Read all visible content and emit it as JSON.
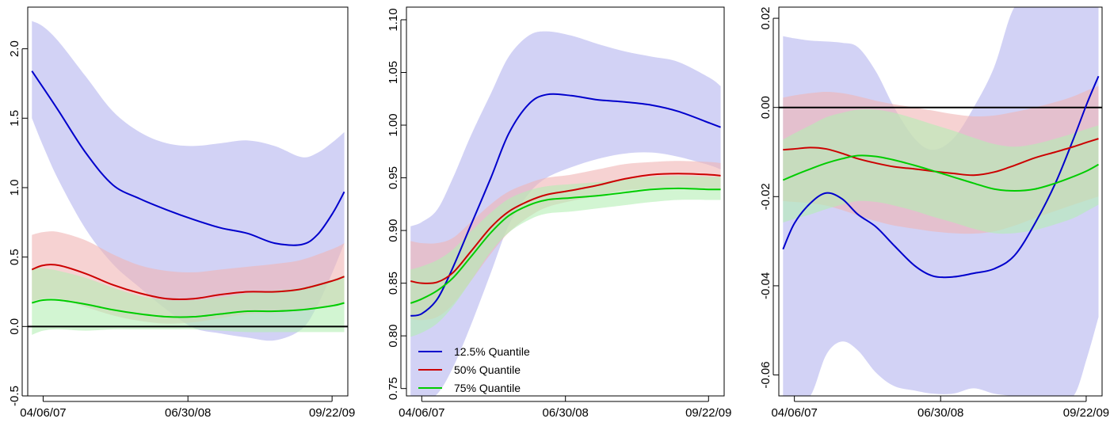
{
  "chart_data": [
    {
      "type": "line",
      "x_tick_labels": [
        "04/06/07",
        "06/30/08",
        "09/22/09"
      ],
      "x_ticks": [
        "04/06/07",
        "06/30/08",
        "09/22/09"
      ],
      "xlim": [
        "2007-02-17",
        "2009-11-10"
      ],
      "ylim": [
        -0.5,
        2.3
      ],
      "y_ticks": [
        -0.5,
        0.0,
        0.5,
        1.0,
        1.5,
        2.0
      ],
      "y_tick_labels": [
        "-0.5",
        "0.0",
        "0.5",
        "1.0",
        "1.5",
        "2.0"
      ],
      "hline": 0.0,
      "grid": false,
      "series": [
        {
          "color": "#0000cc",
          "band_color": "#b4b4ee",
          "x": [
            "2007-03-02",
            "2007-04-06",
            "2007-05-25",
            "2007-08-17",
            "2007-11-09",
            "2008-02-01",
            "2008-04-25",
            "2008-07-18",
            "2008-10-10",
            "2009-01-02",
            "2009-03-27",
            "2009-06-19",
            "2009-08-07",
            "2009-09-25",
            "2009-10-30"
          ],
          "y": [
            1.84,
            1.72,
            1.55,
            1.25,
            1.02,
            0.92,
            0.84,
            0.77,
            0.71,
            0.67,
            0.6,
            0.59,
            0.66,
            0.82,
            0.97
          ],
          "lower": [
            1.5,
            1.3,
            1.05,
            0.7,
            0.45,
            0.28,
            0.12,
            -0.01,
            -0.05,
            -0.08,
            -0.1,
            -0.02,
            0.15,
            0.4,
            0.6
          ],
          "upper": [
            2.2,
            2.16,
            2.05,
            1.8,
            1.55,
            1.4,
            1.32,
            1.3,
            1.32,
            1.34,
            1.3,
            1.22,
            1.25,
            1.33,
            1.4
          ]
        },
        {
          "color": "#cc0000",
          "band_color": "#f0b4b4",
          "x": [
            "2007-03-02",
            "2007-04-06",
            "2007-05-25",
            "2007-08-17",
            "2007-11-09",
            "2008-02-01",
            "2008-04-25",
            "2008-07-18",
            "2008-10-10",
            "2009-01-02",
            "2009-03-27",
            "2009-06-19",
            "2009-09-25",
            "2009-10-30"
          ],
          "y": [
            0.41,
            0.44,
            0.44,
            0.38,
            0.3,
            0.24,
            0.2,
            0.2,
            0.23,
            0.25,
            0.25,
            0.27,
            0.33,
            0.36
          ],
          "lower": [
            0.18,
            0.2,
            0.2,
            0.14,
            0.08,
            0.04,
            0.02,
            0.03,
            0.06,
            0.09,
            0.1,
            0.12,
            0.15,
            0.16
          ],
          "upper": [
            0.66,
            0.68,
            0.68,
            0.62,
            0.52,
            0.44,
            0.4,
            0.39,
            0.41,
            0.43,
            0.45,
            0.48,
            0.56,
            0.6
          ]
        },
        {
          "color": "#00cc00",
          "band_color": "#b4eeb4",
          "x": [
            "2007-03-02",
            "2007-04-06",
            "2007-05-25",
            "2007-08-17",
            "2007-11-09",
            "2008-02-01",
            "2008-04-25",
            "2008-07-18",
            "2008-10-10",
            "2009-01-02",
            "2009-03-27",
            "2009-06-19",
            "2009-09-25",
            "2009-10-30"
          ],
          "y": [
            0.17,
            0.19,
            0.19,
            0.16,
            0.12,
            0.09,
            0.07,
            0.07,
            0.09,
            0.11,
            0.11,
            0.12,
            0.15,
            0.17
          ],
          "lower": [
            -0.06,
            -0.03,
            -0.02,
            -0.03,
            -0.02,
            -0.02,
            -0.02,
            -0.02,
            -0.03,
            -0.04,
            -0.04,
            -0.04,
            -0.04,
            -0.04
          ],
          "upper": [
            0.42,
            0.42,
            0.4,
            0.35,
            0.28,
            0.22,
            0.19,
            0.19,
            0.21,
            0.24,
            0.26,
            0.28,
            0.34,
            0.37
          ]
        }
      ]
    },
    {
      "type": "line",
      "x_tick_labels": [
        "04/06/07",
        "06/30/08",
        "09/22/09"
      ],
      "x_ticks": [
        "04/06/07",
        "06/30/08",
        "09/22/09"
      ],
      "xlim": [
        "2007-02-17",
        "2009-11-10"
      ],
      "ylim": [
        0.743,
        1.112
      ],
      "y_ticks": [
        0.75,
        0.8,
        0.85,
        0.9,
        0.95,
        1.0,
        1.05,
        1.1
      ],
      "y_tick_labels": [
        "0.75",
        "0.80",
        "0.85",
        "0.90",
        "0.95",
        "1.00",
        "1.05",
        "1.10"
      ],
      "grid": false,
      "legend": {
        "position": "bottom-left",
        "entries": [
          {
            "label": "12.5% Quantile",
            "color": "#0000cc"
          },
          {
            "label": "50% Quantile",
            "color": "#cc0000"
          },
          {
            "label": "75% Quantile",
            "color": "#00cc00"
          }
        ]
      },
      "series": [
        {
          "color": "#0000cc",
          "band_color": "#b4b4ee",
          "x": [
            "2007-03-02",
            "2007-04-06",
            "2007-05-25",
            "2007-07-13",
            "2007-09-07",
            "2007-11-09",
            "2008-01-04",
            "2008-03-07",
            "2008-05-02",
            "2008-07-18",
            "2008-10-10",
            "2009-01-02",
            "2009-03-27",
            "2009-06-19",
            "2009-09-25",
            "2009-10-30"
          ],
          "y": [
            0.819,
            0.821,
            0.835,
            0.865,
            0.905,
            0.95,
            0.992,
            1.02,
            1.029,
            1.028,
            1.024,
            1.022,
            1.019,
            1.013,
            1.002,
            0.998
          ],
          "lower": [
            0.736,
            0.738,
            0.745,
            0.77,
            0.81,
            0.86,
            0.905,
            0.935,
            0.95,
            0.96,
            0.968,
            0.973,
            0.974,
            0.97,
            0.962,
            0.958
          ],
          "upper": [
            0.904,
            0.908,
            0.92,
            0.95,
            0.99,
            1.03,
            1.065,
            1.085,
            1.089,
            1.085,
            1.077,
            1.07,
            1.065,
            1.06,
            1.045,
            1.037
          ]
        },
        {
          "color": "#cc0000",
          "band_color": "#f0b4b4",
          "x": [
            "2007-03-02",
            "2007-04-06",
            "2007-05-25",
            "2007-07-13",
            "2007-09-07",
            "2007-11-09",
            "2008-01-04",
            "2008-03-07",
            "2008-05-02",
            "2008-07-18",
            "2008-10-10",
            "2009-01-02",
            "2009-03-27",
            "2009-06-19",
            "2009-09-25",
            "2009-10-30"
          ],
          "y": [
            0.852,
            0.85,
            0.851,
            0.86,
            0.88,
            0.903,
            0.918,
            0.928,
            0.934,
            0.938,
            0.943,
            0.949,
            0.953,
            0.954,
            0.953,
            0.952
          ],
          "lower": [
            0.816,
            0.815,
            0.818,
            0.83,
            0.852,
            0.878,
            0.898,
            0.913,
            0.922,
            0.928,
            0.933,
            0.938,
            0.94,
            0.941,
            0.94,
            0.939
          ],
          "upper": [
            0.89,
            0.888,
            0.888,
            0.893,
            0.908,
            0.925,
            0.937,
            0.945,
            0.95,
            0.953,
            0.958,
            0.963,
            0.965,
            0.966,
            0.965,
            0.964
          ]
        },
        {
          "color": "#00cc00",
          "band_color": "#b4eeb4",
          "x": [
            "2007-03-02",
            "2007-04-06",
            "2007-05-25",
            "2007-07-13",
            "2007-09-07",
            "2007-11-09",
            "2008-01-04",
            "2008-03-07",
            "2008-05-02",
            "2008-07-18",
            "2008-10-10",
            "2009-01-02",
            "2009-03-27",
            "2009-06-19",
            "2009-09-25",
            "2009-10-30"
          ],
          "y": [
            0.831,
            0.835,
            0.843,
            0.855,
            0.875,
            0.898,
            0.914,
            0.924,
            0.929,
            0.931,
            0.933,
            0.936,
            0.939,
            0.94,
            0.939,
            0.939
          ],
          "lower": [
            0.799,
            0.803,
            0.812,
            0.828,
            0.852,
            0.88,
            0.898,
            0.91,
            0.916,
            0.918,
            0.921,
            0.924,
            0.927,
            0.929,
            0.929,
            0.929
          ],
          "upper": [
            0.863,
            0.866,
            0.872,
            0.882,
            0.899,
            0.917,
            0.93,
            0.938,
            0.942,
            0.944,
            0.946,
            0.949,
            0.951,
            0.952,
            0.951,
            0.951
          ]
        }
      ]
    },
    {
      "type": "line",
      "x_tick_labels": [
        "04/06/07",
        "06/30/08",
        "09/22/09"
      ],
      "x_ticks": [
        "04/06/07",
        "06/30/08",
        "09/22/09"
      ],
      "xlim": [
        "2007-02-17",
        "2009-11-10"
      ],
      "ylim": [
        -0.0647,
        0.0225
      ],
      "y_ticks": [
        -0.06,
        -0.04,
        -0.02,
        0.0,
        0.02
      ],
      "y_tick_labels": [
        "-0.06",
        "-0.04",
        "-0.02",
        "0.00",
        "0.02"
      ],
      "hline": 0.0,
      "grid": false,
      "series": [
        {
          "color": "#0000cc",
          "band_color": "#b4b4ee",
          "x": [
            "2007-03-02",
            "2007-04-06",
            "2007-05-25",
            "2007-07-13",
            "2007-08-31",
            "2007-10-19",
            "2007-12-14",
            "2008-02-08",
            "2008-04-11",
            "2008-06-06",
            "2008-08-08",
            "2008-10-10",
            "2008-12-12",
            "2009-02-13",
            "2009-04-17",
            "2009-06-19",
            "2009-08-14",
            "2009-09-25",
            "2009-10-30"
          ],
          "y": [
            -0.0318,
            -0.026,
            -0.0215,
            -0.0192,
            -0.0205,
            -0.024,
            -0.0268,
            -0.031,
            -0.0355,
            -0.0378,
            -0.038,
            -0.0372,
            -0.0362,
            -0.0332,
            -0.026,
            -0.017,
            -0.007,
            0.001,
            0.007
          ],
          "lower": [
            -0.0647,
            -0.0647,
            -0.0647,
            -0.0555,
            -0.0525,
            -0.0545,
            -0.0595,
            -0.0625,
            -0.0635,
            -0.0642,
            -0.0642,
            -0.063,
            -0.0642,
            -0.0647,
            -0.0647,
            -0.0647,
            -0.0647,
            -0.056,
            -0.047
          ],
          "upper": [
            0.016,
            0.0155,
            0.015,
            0.0148,
            0.0145,
            0.0135,
            0.008,
            0.0,
            -0.007,
            -0.0095,
            -0.007,
            0.0,
            0.009,
            0.0225,
            0.0225,
            0.0225,
            0.0225,
            0.0225,
            0.0225
          ]
        },
        {
          "color": "#cc0000",
          "band_color": "#f0b4b4",
          "x": [
            "2007-03-02",
            "2007-04-06",
            "2007-05-25",
            "2007-07-13",
            "2007-08-31",
            "2007-10-19",
            "2007-12-14",
            "2008-02-08",
            "2008-04-11",
            "2008-06-06",
            "2008-08-08",
            "2008-10-10",
            "2008-12-12",
            "2009-02-13",
            "2009-04-17",
            "2009-06-19",
            "2009-08-14",
            "2009-09-25",
            "2009-10-30"
          ],
          "y": [
            -0.0095,
            -0.0093,
            -0.009,
            -0.0093,
            -0.0103,
            -0.0115,
            -0.0125,
            -0.0133,
            -0.0138,
            -0.0143,
            -0.0148,
            -0.0152,
            -0.0145,
            -0.013,
            -0.0113,
            -0.01,
            -0.0088,
            -0.0078,
            -0.007
          ],
          "lower": [
            -0.021,
            -0.0212,
            -0.0215,
            -0.022,
            -0.023,
            -0.0242,
            -0.0255,
            -0.0265,
            -0.0272,
            -0.0278,
            -0.0282,
            -0.0283,
            -0.0278,
            -0.0265,
            -0.0248,
            -0.0232,
            -0.0218,
            -0.0208,
            -0.02
          ],
          "upper": [
            0.0022,
            0.0027,
            0.0032,
            0.0035,
            0.0032,
            0.0025,
            0.0015,
            0.0007,
            0.0,
            -0.0007,
            -0.0015,
            -0.002,
            -0.0018,
            -0.001,
            0.0,
            0.0012,
            0.0025,
            0.0038,
            0.0048
          ]
        },
        {
          "color": "#00cc00",
          "band_color": "#b4eeb4",
          "x": [
            "2007-03-02",
            "2007-04-06",
            "2007-05-25",
            "2007-07-13",
            "2007-08-31",
            "2007-10-19",
            "2007-12-14",
            "2008-02-08",
            "2008-04-11",
            "2008-06-06",
            "2008-08-08",
            "2008-10-10",
            "2008-12-12",
            "2009-02-13",
            "2009-04-17",
            "2009-06-19",
            "2009-08-14",
            "2009-09-25",
            "2009-10-30"
          ],
          "y": [
            -0.0163,
            -0.0152,
            -0.0138,
            -0.0125,
            -0.0115,
            -0.0108,
            -0.011,
            -0.0118,
            -0.013,
            -0.0142,
            -0.0156,
            -0.017,
            -0.0183,
            -0.0187,
            -0.0183,
            -0.017,
            -0.0155,
            -0.0142,
            -0.0128
          ],
          "lower": [
            -0.0258,
            -0.025,
            -0.024,
            -0.0228,
            -0.0218,
            -0.021,
            -0.0212,
            -0.022,
            -0.0232,
            -0.0245,
            -0.0258,
            -0.0272,
            -0.0282,
            -0.0282,
            -0.0275,
            -0.0262,
            -0.0248,
            -0.0232,
            -0.0218
          ],
          "upper": [
            -0.0072,
            -0.0058,
            -0.004,
            -0.0022,
            -0.0012,
            -0.0005,
            -0.0005,
            -0.0012,
            -0.0025,
            -0.0038,
            -0.0052,
            -0.0068,
            -0.0082,
            -0.0088,
            -0.0082,
            -0.007,
            -0.0058,
            -0.0048,
            -0.004
          ]
        }
      ]
    }
  ]
}
